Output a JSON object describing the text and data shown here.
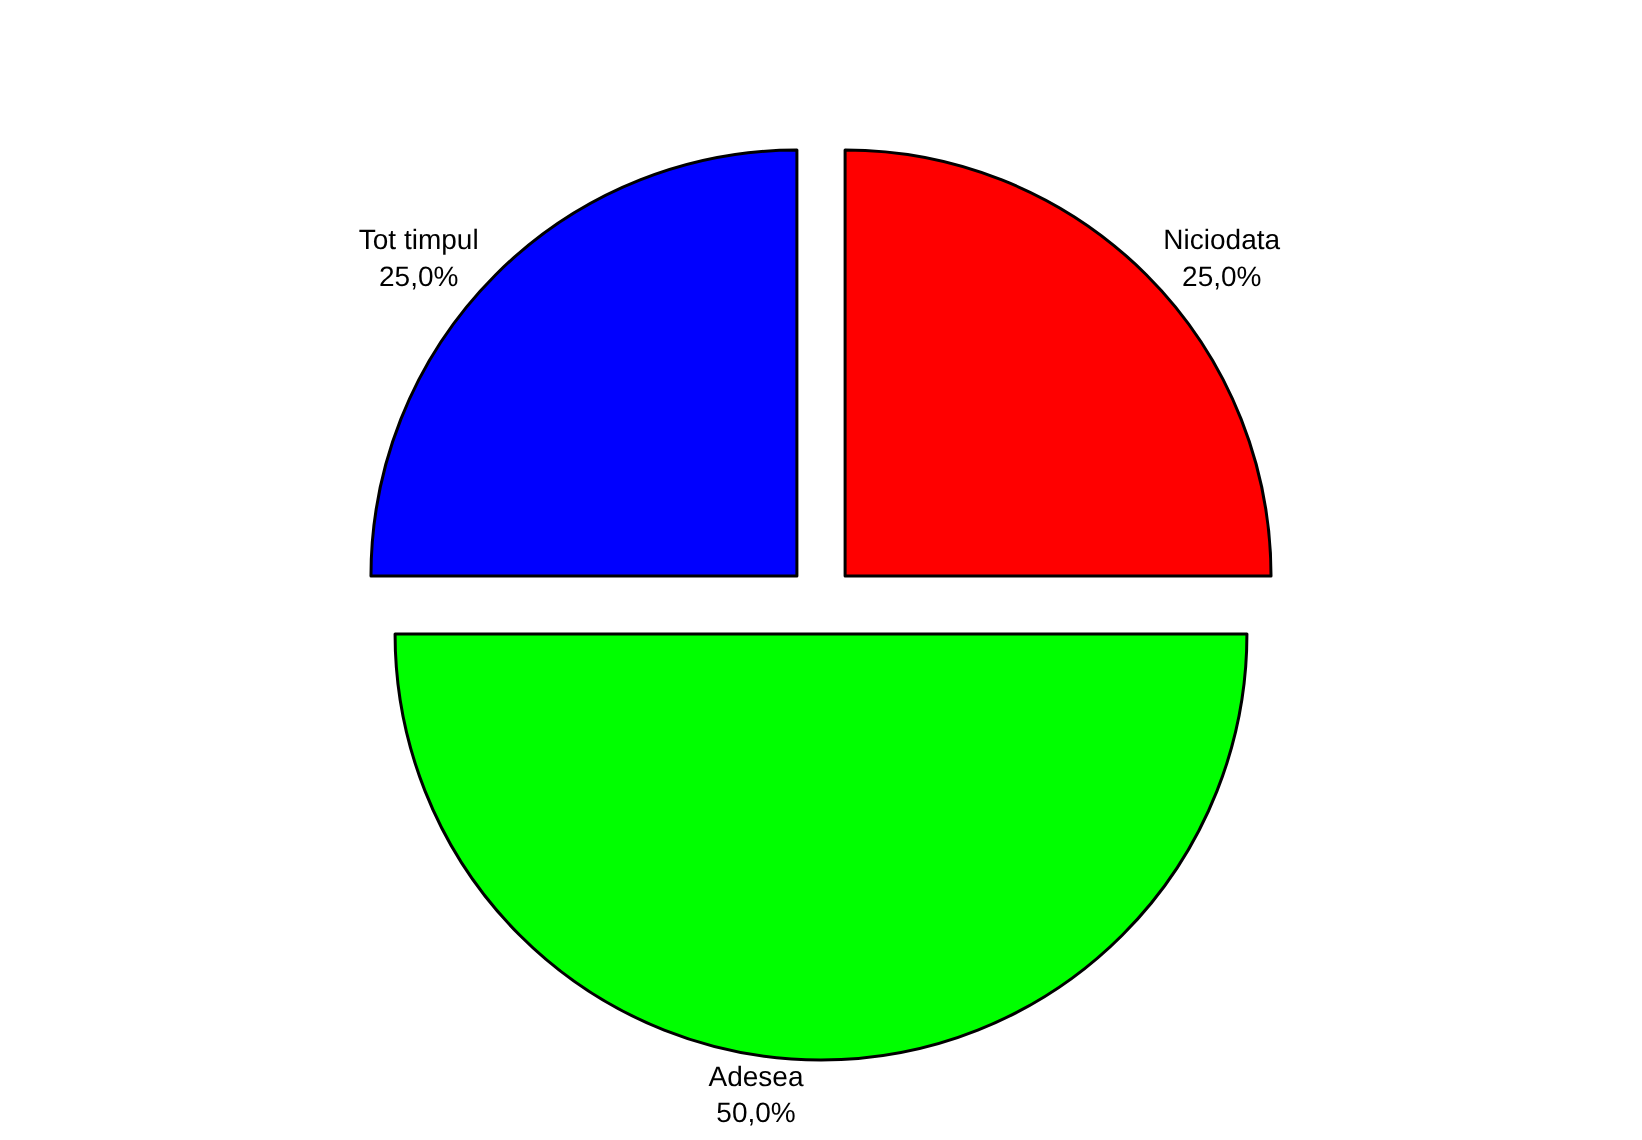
{
  "chart_data": {
    "type": "pie",
    "categories": [
      "Niciodata",
      "Adesea",
      "Tot timpul"
    ],
    "values": [
      25,
      50,
      25
    ],
    "colors": [
      "#ff0000",
      "#00ff00",
      "#0000ff"
    ],
    "value_labels": [
      "25,0%",
      "50,0%",
      "25,0%"
    ],
    "legend": false
  }
}
